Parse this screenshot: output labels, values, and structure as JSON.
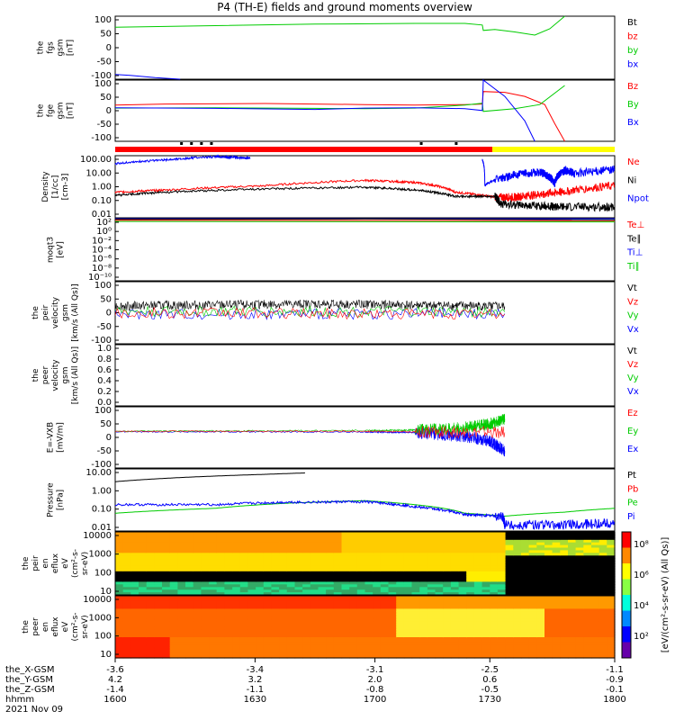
{
  "title": "P4 (TH-E) fields and ground moments overview",
  "colors": {
    "black": "#000000",
    "red": "#ff0000",
    "green": "#00cc00",
    "blue": "#0000ff",
    "yellow": "#ffff00"
  },
  "chart_data": [
    {
      "type": "line",
      "id": "fgs_gsm",
      "ylabel": [
        "the",
        "fgs",
        "gsm",
        "[nT]"
      ],
      "ylim": [
        -100,
        100
      ],
      "yticks": [
        "100",
        "50",
        "0",
        "-50",
        "-100"
      ],
      "legend": [
        {
          "name": "Bt",
          "color": "black"
        },
        {
          "name": "bz",
          "color": "red"
        },
        {
          "name": "by",
          "color": "green"
        },
        {
          "name": "bx",
          "color": "blue"
        }
      ],
      "series": [
        {
          "name": "by",
          "color": "green",
          "x": [
            0,
            0.2,
            0.4,
            0.6,
            0.7,
            0.735,
            0.737,
            0.76,
            0.8,
            0.84,
            0.87,
            0.9
          ],
          "y": [
            65,
            70,
            75,
            77,
            77,
            72,
            55,
            58,
            50,
            40,
            60,
            110
          ]
        },
        {
          "name": "bx",
          "color": "blue",
          "x": [
            0,
            0.03,
            0.08,
            0.13
          ],
          "y": [
            -85,
            -88,
            -95,
            -102
          ]
        }
      ]
    },
    {
      "type": "line",
      "id": "fge_gsm",
      "ylabel": [
        "the",
        "fge",
        "gsm",
        "[nT]"
      ],
      "ylim": [
        -125,
        100
      ],
      "yticks": [
        "100",
        "50",
        "0",
        "-50",
        "-100"
      ],
      "legend": [
        {
          "name": "Bz",
          "color": "red"
        },
        {
          "name": "By",
          "color": "green"
        },
        {
          "name": "Bx",
          "color": "blue"
        }
      ],
      "series": [
        {
          "name": "Bz",
          "color": "red",
          "x": [
            0,
            0.1,
            0.3,
            0.5,
            0.6,
            0.7,
            0.735,
            0.737,
            0.78,
            0.82,
            0.86,
            0.88,
            0.9
          ],
          "y": [
            8,
            12,
            14,
            10,
            8,
            10,
            12,
            58,
            55,
            40,
            10,
            -60,
            -125
          ]
        },
        {
          "name": "By",
          "color": "green",
          "x": [
            0,
            0.2,
            0.4,
            0.5,
            0.6,
            0.7,
            0.735,
            0.737,
            0.8,
            0.85,
            0.9
          ],
          "y": [
            -3,
            -2,
            -4,
            -5,
            -3,
            8,
            15,
            -15,
            -5,
            10,
            80
          ]
        },
        {
          "name": "Bx",
          "color": "blue",
          "x": [
            0,
            0.2,
            0.4,
            0.5,
            0.6,
            0.7,
            0.735,
            0.737,
            0.78,
            0.82,
            0.84
          ],
          "y": [
            -2,
            -4,
            -8,
            -3,
            -2,
            -5,
            -12,
            100,
            40,
            -50,
            -125
          ]
        }
      ]
    },
    {
      "type": "line",
      "id": "density",
      "ylabel": [
        "Density",
        "[1/cc]",
        "[cm-3]"
      ],
      "scale": "log",
      "ylim": [
        0.01,
        300
      ],
      "yticks": [
        "100.00",
        "10.00",
        "1.00",
        "0.10",
        "0.01"
      ],
      "legend": [
        {
          "name": "Ne",
          "color": "red"
        },
        {
          "name": "Ni",
          "color": "black"
        },
        {
          "name": "Npot",
          "color": "blue"
        }
      ],
      "series": [
        {
          "name": "Ne",
          "color": "red",
          "x": [
            0,
            0.1,
            0.3,
            0.5,
            0.6,
            0.68,
            0.76,
            0.8,
            0.85,
            0.9,
            1
          ],
          "y": [
            0.7,
            1.0,
            2.0,
            5.0,
            3.5,
            0.7,
            0.3,
            0.3,
            0.5,
            0.8,
            2.0
          ]
        },
        {
          "name": "Ni",
          "color": "black",
          "x": [
            0,
            0.1,
            0.3,
            0.5,
            0.6,
            0.68,
            0.76,
            0.77,
            0.85,
            0.9,
            1
          ],
          "y": [
            0.4,
            0.7,
            1.2,
            1.6,
            1.0,
            0.35,
            0.35,
            0.1,
            0.07,
            0.06,
            0.06
          ]
        },
        {
          "name": "Npot",
          "color": "blue",
          "x": [
            0,
            0.1,
            0.2,
            0.25,
            0.27
          ],
          "y": [
            80,
            150,
            250,
            220,
            200
          ]
        },
        {
          "name": "Npot",
          "color": "blue",
          "x": [
            0.735,
            0.74,
            0.8,
            0.85,
            0.87,
            0.88,
            0.9,
            0.92,
            1
          ],
          "y": [
            150,
            2,
            12,
            20,
            8,
            3,
            25,
            15,
            30
          ]
        }
      ]
    },
    {
      "type": "line",
      "id": "moqt3",
      "ylabel": [
        "moqt3",
        "[eV]"
      ],
      "scale": "log",
      "ylim": [
        1e-10,
        100
      ],
      "yticks": [
        "10²",
        "10⁰",
        "10⁻²",
        "10⁻⁴",
        "10⁻⁶",
        "10⁻⁸",
        "10⁻¹⁰"
      ],
      "legend": [
        {
          "name": "Te⊥",
          "color": "red"
        },
        {
          "name": "Te∥",
          "color": "black"
        },
        {
          "name": "Ti⊥",
          "color": "blue"
        },
        {
          "name": "Ti∥",
          "color": "green"
        }
      ],
      "series": [
        {
          "name": "Ti⊥",
          "color": "blue",
          "x": [
            0,
            0.5,
            1
          ],
          "y": [
            200,
            180,
            120
          ]
        },
        {
          "name": "Te∥",
          "color": "black",
          "x": [
            0,
            0.5,
            1
          ],
          "y": [
            80,
            90,
            60
          ]
        },
        {
          "name": "Te⊥",
          "color": "red",
          "x": [
            0,
            1
          ],
          "y": [
            50,
            40
          ]
        },
        {
          "name": "Ti∥",
          "color": "green",
          "x": [
            0,
            1
          ],
          "y": [
            30,
            25
          ]
        }
      ]
    },
    {
      "type": "line",
      "id": "peir_vel",
      "ylabel": [
        "the",
        "peir",
        "velocity",
        "gsm",
        "[km/s (All Qs)]"
      ],
      "ylim": [
        -100,
        100
      ],
      "yticks": [
        "100",
        "50",
        "0",
        "-50",
        "-100"
      ],
      "legend": [
        {
          "name": "Vt",
          "color": "black"
        },
        {
          "name": "Vz",
          "color": "red"
        },
        {
          "name": "Vy",
          "color": "green"
        },
        {
          "name": "Vx",
          "color": "blue"
        }
      ],
      "series": [
        {
          "name": "Vt",
          "color": "black",
          "x": [
            0,
            0.2,
            0.4,
            0.6,
            0.78
          ],
          "y": [
            22,
            25,
            28,
            25,
            20
          ]
        },
        {
          "name": "Vx",
          "color": "blue",
          "x": [
            0,
            0.78
          ],
          "y": [
            -5,
            -3
          ]
        },
        {
          "name": "Vy",
          "color": "green",
          "x": [
            0,
            0.78
          ],
          "y": [
            5,
            3
          ]
        },
        {
          "name": "Vz",
          "color": "red",
          "x": [
            0,
            0.78
          ],
          "y": [
            0,
            -5
          ]
        }
      ]
    },
    {
      "type": "line",
      "id": "peer_vel",
      "ylabel": [
        "the",
        "peer",
        "velocity",
        "gsm",
        "[km/s (All Qs)]"
      ],
      "ylim": [
        0,
        1
      ],
      "yticks": [
        "1.0",
        "0.8",
        "0.6",
        "0.4",
        "0.2",
        "0.0"
      ],
      "legend": [
        {
          "name": "Vt",
          "color": "black"
        },
        {
          "name": "Vz",
          "color": "red"
        },
        {
          "name": "Vy",
          "color": "green"
        },
        {
          "name": "Vx",
          "color": "blue"
        }
      ],
      "series": []
    },
    {
      "type": "line",
      "id": "e_vxb",
      "ylabel": [
        "E=-VXB",
        "[mV/m]"
      ],
      "ylim": [
        -150,
        100
      ],
      "yticks": [
        "100",
        "50",
        "0",
        "-50",
        "-100"
      ],
      "legend": [
        {
          "name": "Ez",
          "color": "red"
        },
        {
          "name": "Ey",
          "color": "green"
        },
        {
          "name": "Ex",
          "color": "blue"
        }
      ],
      "series": [
        {
          "name": "Ex",
          "color": "blue",
          "x": [
            0,
            0.5,
            0.6,
            0.7,
            0.75,
            0.78
          ],
          "y": [
            -2,
            -3,
            -5,
            -20,
            -40,
            -80
          ]
        },
        {
          "name": "Ey",
          "color": "green",
          "x": [
            0,
            0.5,
            0.6,
            0.7,
            0.75,
            0.78
          ],
          "y": [
            0,
            3,
            5,
            15,
            30,
            50
          ]
        },
        {
          "name": "Ez",
          "color": "red",
          "x": [
            0,
            0.5,
            0.78
          ],
          "y": [
            0,
            0,
            -5
          ]
        }
      ]
    },
    {
      "type": "line",
      "id": "pressure",
      "ylabel": [
        "Pressure",
        "[nPa]"
      ],
      "scale": "log",
      "ylim": [
        0.005,
        30
      ],
      "yticks": [
        "10.00",
        "1.00",
        "0.10",
        "0.01"
      ],
      "legend": [
        {
          "name": "Pt",
          "color": "black"
        },
        {
          "name": "Pb",
          "color": "red"
        },
        {
          "name": "Pe",
          "color": "green"
        },
        {
          "name": "Pi",
          "color": "blue"
        }
      ],
      "series": [
        {
          "name": "Pt",
          "color": "black",
          "x": [
            0,
            0.1,
            0.2,
            0.3,
            0.38
          ],
          "y": [
            5,
            8,
            11,
            14,
            17
          ]
        },
        {
          "name": "Pe",
          "color": "green",
          "x": [
            0,
            0.2,
            0.35,
            0.5,
            0.6,
            0.7,
            0.78,
            0.9,
            1
          ],
          "y": [
            0.06,
            0.12,
            0.25,
            0.35,
            0.2,
            0.06,
            0.04,
            0.07,
            0.12
          ]
        },
        {
          "name": "Pi",
          "color": "blue",
          "x": [
            0,
            0.2,
            0.35,
            0.5,
            0.6,
            0.7,
            0.775,
            0.78,
            0.9,
            1
          ],
          "y": [
            0.2,
            0.2,
            0.28,
            0.3,
            0.15,
            0.05,
            0.04,
            0.012,
            0.012,
            0.015
          ]
        }
      ]
    },
    {
      "type": "heatmap",
      "id": "peir_eflux",
      "ylabel": [
        "the",
        "peir",
        "en",
        "eflux",
        "eV",
        "(cm²-s-",
        "sr-eV)"
      ],
      "scale": "log",
      "ylim": [
        5,
        30000
      ],
      "yticks": [
        "10000",
        "1000",
        "100",
        "10"
      ]
    },
    {
      "type": "heatmap",
      "id": "peer_eflux",
      "ylabel": [
        "the",
        "peer",
        "en",
        "eflux",
        "eV",
        "(cm²-s-",
        "sr-eV)"
      ],
      "scale": "log",
      "ylim": [
        5,
        30000
      ],
      "yticks": [
        "10000",
        "1000",
        "100",
        "10"
      ]
    }
  ],
  "colorbar": {
    "label": "[eV/(cm²-s-sr-eV) (All Qs)]",
    "ticks": [
      "10⁸",
      "10⁶",
      "10⁴",
      "10²"
    ]
  },
  "xaxis": {
    "rows": [
      {
        "label": "the_X-GSM",
        "values": [
          "-3.6",
          "-3.4",
          "-3.1",
          "-2.5",
          "-1.1"
        ]
      },
      {
        "label": "the_Y-GSM",
        "values": [
          "4.2",
          "3.2",
          "2.0",
          "0.6",
          "-0.9"
        ]
      },
      {
        "label": "the_Z-GSM",
        "values": [
          "-1.4",
          "-1.1",
          "-0.8",
          "-0.5",
          "-0.1"
        ]
      },
      {
        "label": "hhmm",
        "values": [
          "1600",
          "1630",
          "1700",
          "1730",
          "1800"
        ]
      }
    ],
    "date": "2021 Nov 09"
  },
  "mode_bar": {
    "red_until": "17:35",
    "yellow_after": "17:35"
  }
}
